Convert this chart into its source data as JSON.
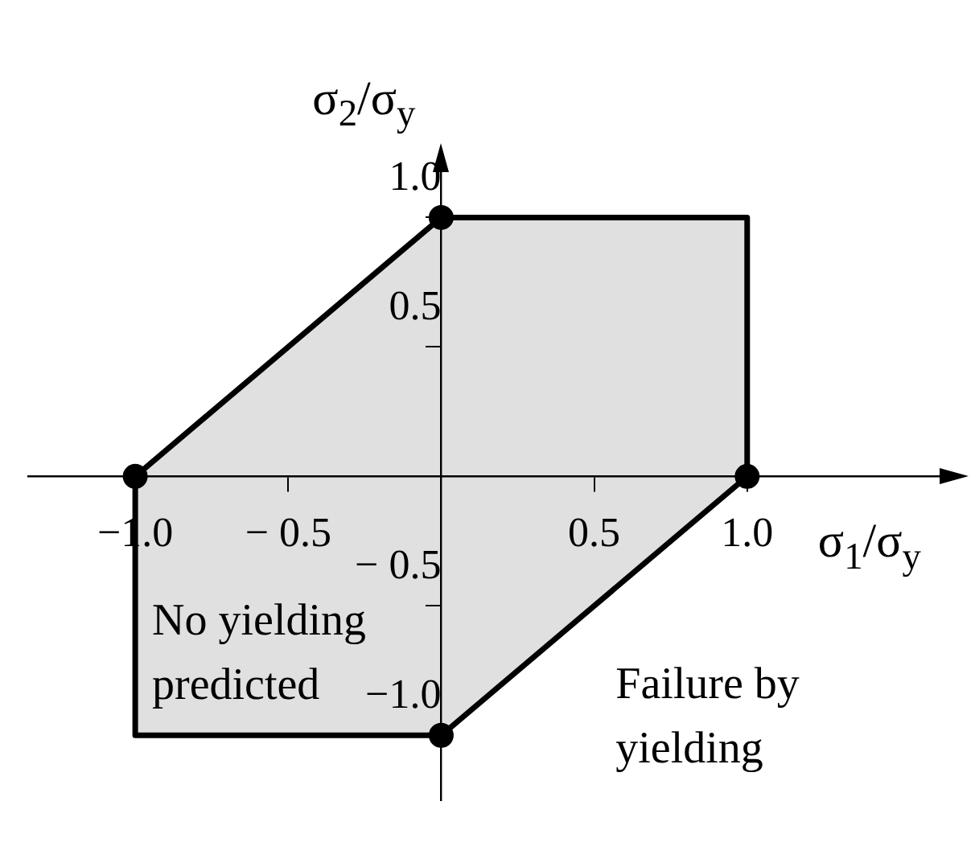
{
  "chart_data": {
    "type": "area",
    "xlabel": "σ$_{1}$/σ$_{y}$",
    "ylabel": "σ$_{2}$/σ$_{y}$",
    "series": [
      {
        "color": "#000000",
        "x": [
          0,
          1,
          1,
          0,
          -1,
          -1,
          0
        ],
        "values": [
          1,
          1,
          0,
          -1,
          -1,
          0,
          1
        ],
        "marker": "none"
      },
      {
        "type": "scatter",
        "color": "#000000",
        "x": [
          0,
          1,
          0,
          -1
        ],
        "values": [
          1,
          0,
          -1,
          0
        ],
        "marker": "circle"
      }
    ],
    "xlim": [
      -1.35,
      1.65
    ],
    "ylim": [
      -1.25,
      1.2
    ],
    "xticks": [
      {
        "value": -1,
        "label": "−1.0"
      },
      {
        "value": -0.5,
        "label": "− 0.5"
      },
      {
        "value": 0.5,
        "label": "0.5"
      },
      {
        "value": 1,
        "label": "1.0"
      }
    ],
    "yticks": [
      {
        "value": -1,
        "label": "−1.0"
      },
      {
        "value": -0.5,
        "label": "− 0.5"
      },
      {
        "value": 0.5,
        "label": "0.5"
      },
      {
        "value": 1,
        "label": "1.0"
      }
    ],
    "grid": false,
    "legend": false,
    "annotations": [
      "No yielding\npredicted",
      "Failure by\nyielding"
    ]
  }
}
